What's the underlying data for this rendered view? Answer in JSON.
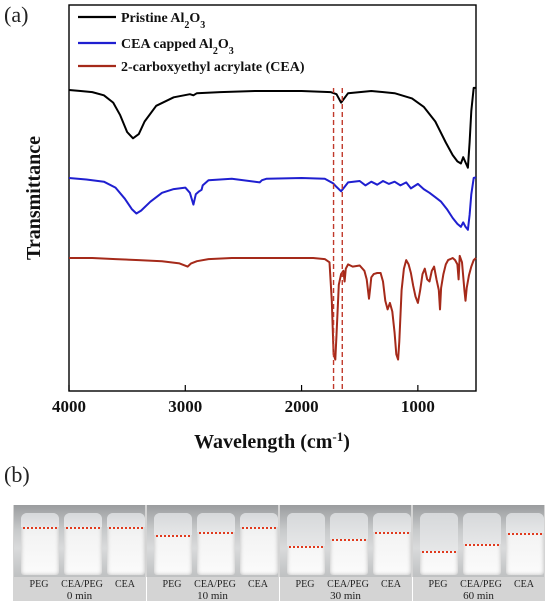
{
  "panels": {
    "a": "(a)",
    "b": "(b)"
  },
  "chart_data": {
    "type": "line",
    "xlabel": "Wavelength (cm",
    "xlabel_sup": "-1",
    "xlabel_end": ")",
    "ylabel": "Transmittance",
    "xlim": [
      4000,
      500
    ],
    "xticks": [
      "4000",
      "3000",
      "2000",
      "1000"
    ],
    "xtick_values": [
      4000,
      3000,
      2000,
      1000
    ],
    "reference_lines": [
      1725,
      1650
    ],
    "series": [
      {
        "name": "Pristine Al2O3",
        "legend_main": "Pristine Al",
        "legend_sub1": "2",
        "legend_mid": "O",
        "legend_sub2": "3",
        "color": "#000000",
        "points": [
          [
            4000,
            1.0
          ],
          [
            3900,
            0.99
          ],
          [
            3800,
            0.98
          ],
          [
            3700,
            0.95
          ],
          [
            3620,
            0.88
          ],
          [
            3560,
            0.76
          ],
          [
            3500,
            0.6
          ],
          [
            3450,
            0.54
          ],
          [
            3400,
            0.58
          ],
          [
            3350,
            0.7
          ],
          [
            3250,
            0.85
          ],
          [
            3100,
            0.93
          ],
          [
            2960,
            0.96
          ],
          [
            2930,
            0.95
          ],
          [
            2900,
            0.97
          ],
          [
            2700,
            0.98
          ],
          [
            2400,
            0.99
          ],
          [
            2000,
            0.99
          ],
          [
            1750,
            0.98
          ],
          [
            1700,
            0.96
          ],
          [
            1660,
            0.88
          ],
          [
            1640,
            0.91
          ],
          [
            1600,
            0.97
          ],
          [
            1400,
            0.99
          ],
          [
            1200,
            0.97
          ],
          [
            1050,
            0.92
          ],
          [
            950,
            0.84
          ],
          [
            850,
            0.7
          ],
          [
            760,
            0.5
          ],
          [
            700,
            0.38
          ],
          [
            660,
            0.32
          ],
          [
            630,
            0.3
          ],
          [
            610,
            0.36
          ],
          [
            590,
            0.31
          ],
          [
            570,
            0.26
          ],
          [
            555,
            0.5
          ],
          [
            540,
            0.8
          ],
          [
            520,
            1.02
          ],
          [
            500,
            1.02
          ]
        ]
      },
      {
        "name": "CEA capped Al2O3",
        "legend_main": "CEA capped Al",
        "legend_sub1": "2",
        "legend_mid": "O",
        "legend_sub2": "3",
        "color": "#1f1fd0",
        "points": [
          [
            4000,
            1.0
          ],
          [
            3850,
            0.98
          ],
          [
            3700,
            0.95
          ],
          [
            3600,
            0.87
          ],
          [
            3520,
            0.72
          ],
          [
            3460,
            0.58
          ],
          [
            3420,
            0.52
          ],
          [
            3380,
            0.56
          ],
          [
            3300,
            0.68
          ],
          [
            3200,
            0.8
          ],
          [
            3100,
            0.85
          ],
          [
            3000,
            0.87
          ],
          [
            2960,
            0.8
          ],
          [
            2930,
            0.64
          ],
          [
            2910,
            0.78
          ],
          [
            2880,
            0.82
          ],
          [
            2860,
            0.84
          ],
          [
            2850,
            0.9
          ],
          [
            2800,
            0.97
          ],
          [
            2600,
            0.99
          ],
          [
            2360,
            0.94
          ],
          [
            2340,
            0.97
          ],
          [
            2300,
            0.99
          ],
          [
            2000,
            1.0
          ],
          [
            1800,
            0.99
          ],
          [
            1730,
            0.93
          ],
          [
            1700,
            0.88
          ],
          [
            1660,
            0.82
          ],
          [
            1630,
            0.88
          ],
          [
            1600,
            0.94
          ],
          [
            1500,
            0.96
          ],
          [
            1450,
            0.9
          ],
          [
            1400,
            0.95
          ],
          [
            1350,
            0.91
          ],
          [
            1300,
            0.96
          ],
          [
            1250,
            0.92
          ],
          [
            1200,
            0.95
          ],
          [
            1150,
            0.9
          ],
          [
            1100,
            0.94
          ],
          [
            1060,
            0.86
          ],
          [
            1000,
            0.92
          ],
          [
            950,
            0.85
          ],
          [
            900,
            0.8
          ],
          [
            850,
            0.74
          ],
          [
            800,
            0.68
          ],
          [
            750,
            0.58
          ],
          [
            700,
            0.46
          ],
          [
            660,
            0.38
          ],
          [
            630,
            0.34
          ],
          [
            610,
            0.4
          ],
          [
            590,
            0.34
          ],
          [
            570,
            0.3
          ],
          [
            555,
            0.5
          ],
          [
            540,
            0.78
          ],
          [
            520,
            1.0
          ],
          [
            500,
            1.01
          ]
        ]
      },
      {
        "name": "2-carboxyethyl acrylate (CEA)",
        "legend_main": "2-carboxyethyl acrylate (CEA)",
        "legend_sub1": "",
        "legend_mid": "",
        "legend_sub2": "",
        "color": "#a52a1a",
        "points": [
          [
            4000,
            1.0
          ],
          [
            3800,
            1.0
          ],
          [
            3600,
            0.99
          ],
          [
            3400,
            0.98
          ],
          [
            3200,
            0.97
          ],
          [
            3050,
            0.95
          ],
          [
            2980,
            0.92
          ],
          [
            2950,
            0.95
          ],
          [
            2900,
            0.97
          ],
          [
            2800,
            0.99
          ],
          [
            2600,
            1.0
          ],
          [
            2200,
            1.0
          ],
          [
            1900,
            1.0
          ],
          [
            1800,
            0.99
          ],
          [
            1760,
            0.96
          ],
          [
            1740,
            0.6
          ],
          [
            1725,
            0.1
          ],
          [
            1710,
            0.05
          ],
          [
            1700,
            0.28
          ],
          [
            1680,
            0.75
          ],
          [
            1660,
            0.85
          ],
          [
            1640,
            0.88
          ],
          [
            1630,
            0.78
          ],
          [
            1620,
            0.9
          ],
          [
            1600,
            0.94
          ],
          [
            1560,
            0.92
          ],
          [
            1500,
            0.93
          ],
          [
            1460,
            0.88
          ],
          [
            1440,
            0.8
          ],
          [
            1420,
            0.62
          ],
          [
            1410,
            0.72
          ],
          [
            1400,
            0.82
          ],
          [
            1380,
            0.85
          ],
          [
            1350,
            0.86
          ],
          [
            1320,
            0.86
          ],
          [
            1300,
            0.78
          ],
          [
            1280,
            0.6
          ],
          [
            1260,
            0.52
          ],
          [
            1240,
            0.58
          ],
          [
            1220,
            0.5
          ],
          [
            1200,
            0.3
          ],
          [
            1185,
            0.1
          ],
          [
            1170,
            0.05
          ],
          [
            1160,
            0.22
          ],
          [
            1140,
            0.7
          ],
          [
            1120,
            0.9
          ],
          [
            1100,
            0.98
          ],
          [
            1080,
            0.94
          ],
          [
            1060,
            0.86
          ],
          [
            1040,
            0.74
          ],
          [
            1020,
            0.64
          ],
          [
            1000,
            0.58
          ],
          [
            980,
            0.7
          ],
          [
            960,
            0.85
          ],
          [
            940,
            0.9
          ],
          [
            920,
            0.8
          ],
          [
            900,
            0.78
          ],
          [
            880,
            0.88
          ],
          [
            860,
            0.92
          ],
          [
            840,
            0.8
          ],
          [
            820,
            0.7
          ],
          [
            810,
            0.52
          ],
          [
            800,
            0.72
          ],
          [
            780,
            0.85
          ],
          [
            760,
            0.94
          ],
          [
            740,
            0.98
          ],
          [
            720,
            0.99
          ],
          [
            700,
            1.0
          ],
          [
            680,
            0.98
          ],
          [
            660,
            0.94
          ],
          [
            650,
            0.8
          ],
          [
            640,
            1.02
          ],
          [
            620,
            0.96
          ],
          [
            600,
            0.7
          ],
          [
            590,
            0.6
          ],
          [
            580,
            0.72
          ],
          [
            560,
            0.84
          ],
          [
            540,
            0.92
          ],
          [
            520,
            0.98
          ],
          [
            500,
            1.0
          ]
        ]
      }
    ]
  },
  "photos": {
    "vial_labels": [
      "PEG",
      "CEA/PEG",
      "CEA"
    ],
    "groups": [
      {
        "time": "0 min",
        "levels": [
          0.22,
          0.22,
          0.22
        ]
      },
      {
        "time": "10 min",
        "levels": [
          0.36,
          0.31,
          0.23
        ]
      },
      {
        "time": "30 min",
        "levels": [
          0.53,
          0.42,
          0.31
        ]
      },
      {
        "time": "60 min",
        "levels": [
          0.62,
          0.5,
          0.32
        ]
      }
    ]
  }
}
